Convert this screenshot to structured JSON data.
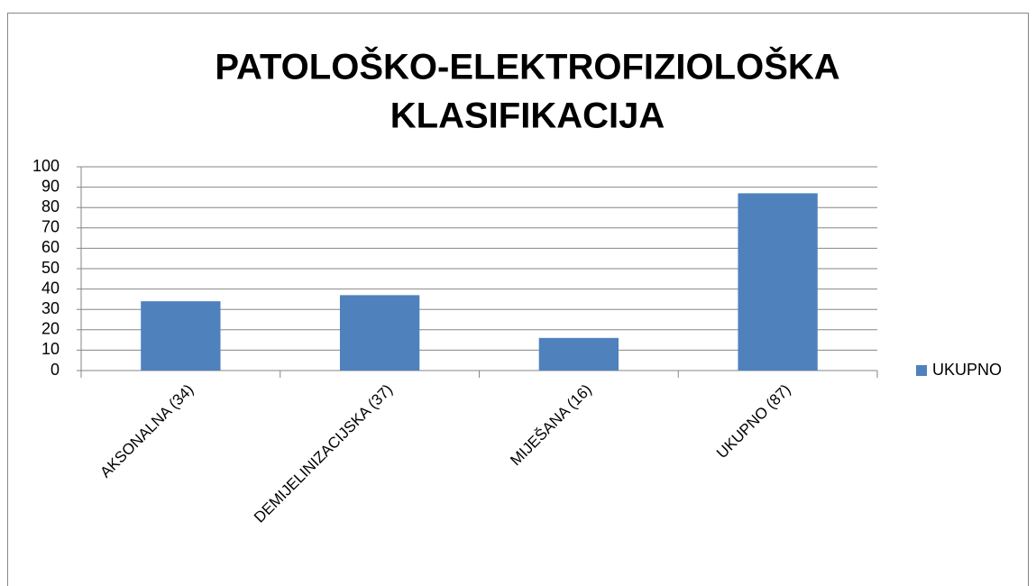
{
  "chart_data": {
    "type": "bar",
    "title": [
      "PATOLOŠKO-ELEKTROFIZIOLOŠKA",
      "KLASIFIKACIJA"
    ],
    "categories": [
      "AKSONALNA (34)",
      "DEMIJELINIZACIJSKA (37)",
      "MIJEŠANA (16)",
      "UKUPNO (87)"
    ],
    "series": [
      {
        "name": "UKUPNO",
        "color": "#4f81bd",
        "values": [
          34,
          37,
          16,
          87
        ]
      }
    ],
    "ylim": [
      0,
      100
    ],
    "yticks": [
      0,
      10,
      20,
      30,
      40,
      50,
      60,
      70,
      80,
      90,
      100
    ],
    "grid": true,
    "legend": "right"
  }
}
